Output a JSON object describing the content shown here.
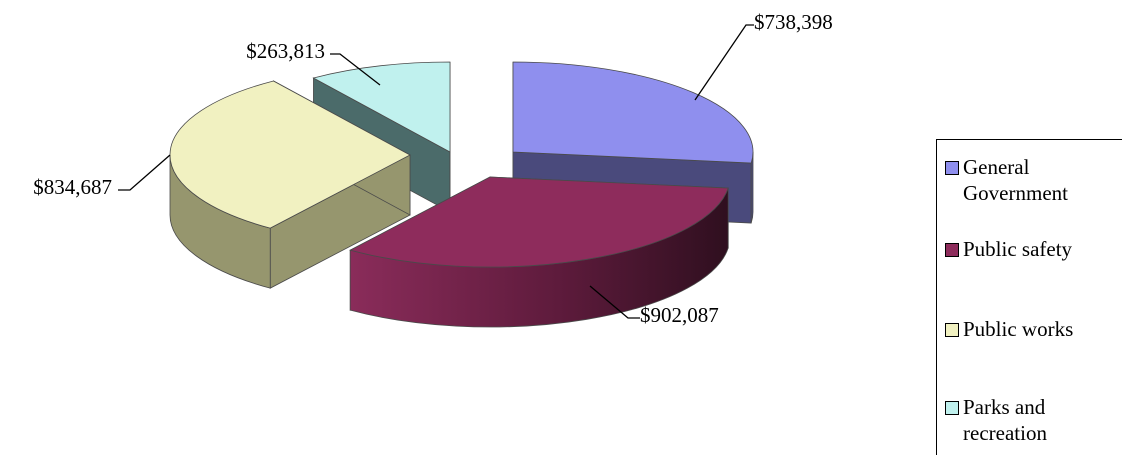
{
  "chart_data": {
    "type": "pie",
    "style": "3d-exploded",
    "title": "",
    "categories": [
      "General Government",
      "Public safety",
      "Public works",
      "Parks and recreation"
    ],
    "values": [
      738398,
      902087,
      834687,
      263813
    ],
    "value_labels": [
      "$738,398",
      "$902,087",
      "$834,687",
      "$263,813"
    ],
    "colors": {
      "top": [
        "#8f8fee",
        "#8e2c5c",
        "#f1f1c1",
        "#c0f1ee"
      ],
      "side": [
        "#4a4a7c",
        "#5e1b3c",
        "#96966e",
        "#4b6b6a"
      ]
    },
    "legend": {
      "position": "right",
      "items": [
        {
          "label_lines": [
            "General",
            "Government"
          ],
          "color": "#8f8fee"
        },
        {
          "label_lines": [
            "Public safety"
          ],
          "color": "#8e2c5c"
        },
        {
          "label_lines": [
            "Public works"
          ],
          "color": "#f1f1c1"
        },
        {
          "label_lines": [
            "Parks and",
            "recreation"
          ],
          "color": "#c0f1ee"
        }
      ]
    }
  }
}
